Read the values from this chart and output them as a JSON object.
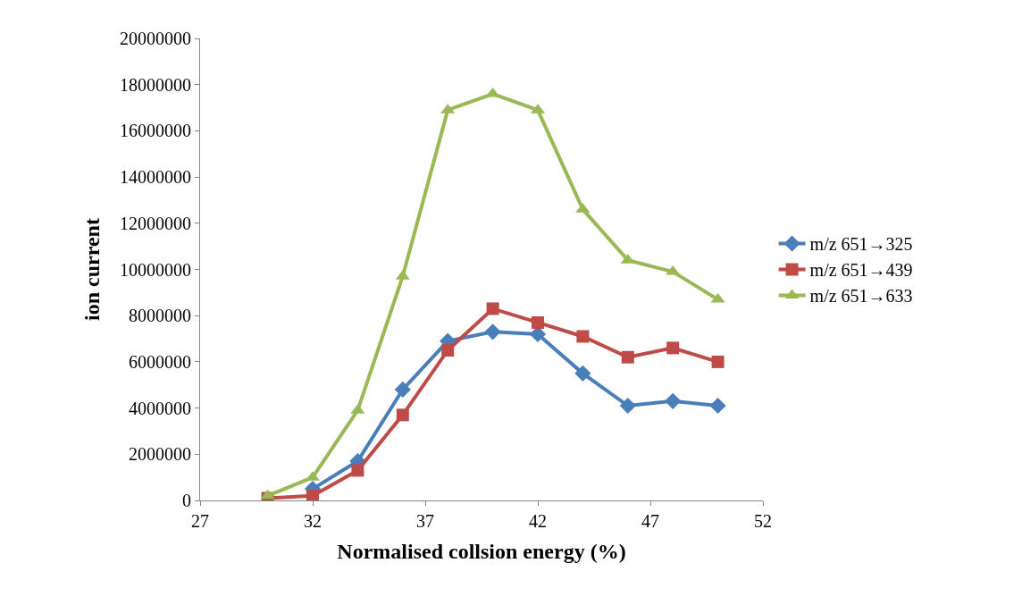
{
  "chart_data": {
    "type": "line",
    "xlabel": "Normalised collsion energy (%)",
    "ylabel": "ion current",
    "x": [
      30,
      32,
      34,
      36,
      38,
      40,
      42,
      44,
      46,
      48,
      50
    ],
    "xlim": [
      27,
      52
    ],
    "xticks": [
      27,
      32,
      37,
      42,
      47,
      52
    ],
    "ylim": [
      0,
      20000000
    ],
    "yticks": [
      0,
      2000000,
      4000000,
      6000000,
      8000000,
      10000000,
      12000000,
      14000000,
      16000000,
      18000000,
      20000000
    ],
    "legend": "right",
    "series": [
      {
        "name": "m/z 651→325",
        "color": "#4a7ebb",
        "marker": "diamond",
        "values": [
          null,
          500000,
          1700000,
          4800000,
          6900000,
          7300000,
          7200000,
          5500000,
          4100000,
          4300000,
          4100000
        ]
      },
      {
        "name": "m/z 651→439",
        "color": "#be4b48",
        "marker": "square",
        "values": [
          100000,
          200000,
          1300000,
          3700000,
          6500000,
          8300000,
          7700000,
          7100000,
          6200000,
          6600000,
          6000000
        ]
      },
      {
        "name": "m/z 651→633",
        "color": "#98b954",
        "marker": "triangle",
        "values": [
          200000,
          1000000,
          3900000,
          9700000,
          16900000,
          17600000,
          16900000,
          12600000,
          10400000,
          9900000,
          8700000
        ]
      }
    ]
  }
}
